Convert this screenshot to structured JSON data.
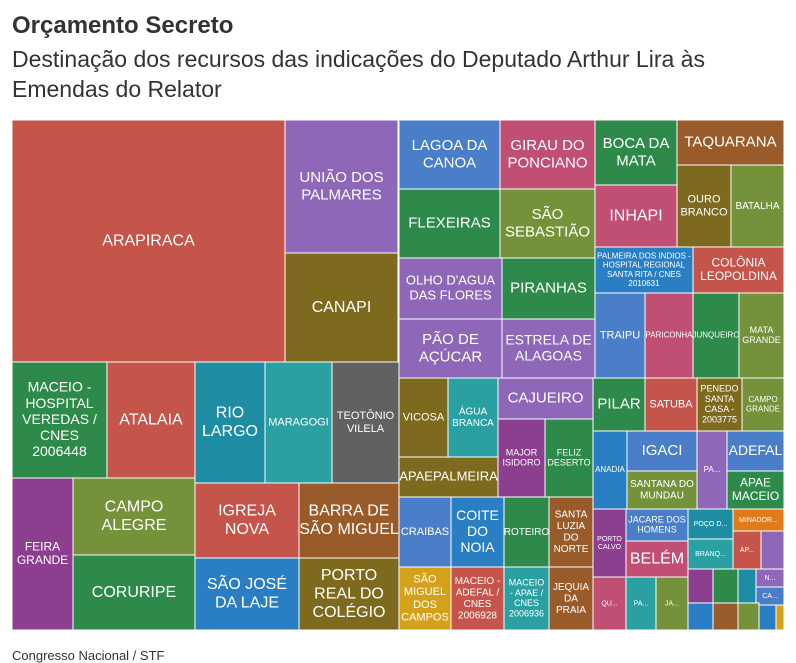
{
  "title": "Orçamento Secreto",
  "subtitle": "Destinação dos recursos das indicações do Deputado Arthur Lira às Emendas do Relator",
  "source": "Congresso Nacional / STF",
  "colors": [
    "#c5544a",
    "#8e67b8",
    "#7d6a1e",
    "#2d8a4a",
    "#1e8da3",
    "#4a7ec9",
    "#c14f73",
    "#616161",
    "#2a7fc4",
    "#9a5b2b",
    "#73923a",
    "#2aa0a3",
    "#8c3f8f",
    "#d4a21a",
    "#e07a1a"
  ],
  "chart_data": {
    "type": "treemap",
    "title": "Orçamento Secreto",
    "subtitle": "Destinação dos recursos das indicações do Deputado Arthur Lira às Emendas do Relator",
    "tiles": [
      {
        "label": "ARAPIRACA"
      },
      {
        "label": "UNIÃO DOS PALMARES"
      },
      {
        "label": "CANAPI"
      },
      {
        "label": "MACEIO - HOSPITAL VEREDAS / CNES 2006448"
      },
      {
        "label": "ATALAIA"
      },
      {
        "label": "RIO LARGO"
      },
      {
        "label": "MARAGOGI"
      },
      {
        "label": "TEOTÔNIO VILELA"
      },
      {
        "label": "FEIRA GRANDE"
      },
      {
        "label": "CAMPO ALEGRE"
      },
      {
        "label": "CORURIPE"
      },
      {
        "label": "IGREJA NOVA"
      },
      {
        "label": "BARRA DE SÃO MIGUEL"
      },
      {
        "label": "SÃO JOSÉ DA LAJE"
      },
      {
        "label": "PORTO REAL DO COLÉGIO"
      },
      {
        "label": "LAGOA DA CANOA"
      },
      {
        "label": "GIRAU DO PONCIANO"
      },
      {
        "label": "FLEXEIRAS"
      },
      {
        "label": "SÃO SEBASTIÃO"
      },
      {
        "label": "OLHO D'AGUA DAS FLORES"
      },
      {
        "label": "PIRANHAS"
      },
      {
        "label": "PÃO DE AÇÚCAR"
      },
      {
        "label": "ESTRELA DE ALAGOAS"
      },
      {
        "label": "VICOSA"
      },
      {
        "label": "ÁGUA BRANCA"
      },
      {
        "label": "CAJUEIRO"
      },
      {
        "label": "MAJOR ISIDORO"
      },
      {
        "label": "FELIZ DESERTO"
      },
      {
        "label": "APAEPALMEIRA"
      },
      {
        "label": "CRAIBAS"
      },
      {
        "label": "COITE DO NOIA"
      },
      {
        "label": "ROTEIRO"
      },
      {
        "label": "SANTA LUZIA DO NORTE"
      },
      {
        "label": "SÃO MIGUEL DOS CAMPOS"
      },
      {
        "label": "MACEIO - ADEFAL / CNES 2006928"
      },
      {
        "label": "MACEIO - APAE / CNES 2006936"
      },
      {
        "label": "JEQUIA DA PRAIA"
      },
      {
        "label": "BOCA DA MATA"
      },
      {
        "label": "TAQUARANA"
      },
      {
        "label": "INHAPI"
      },
      {
        "label": "OURO BRANCO"
      },
      {
        "label": "BATALHA"
      },
      {
        "label": "PALMEIRA DOS INDIOS - HOSPITAL REGIONAL SANTA RITA / CNES 2010631"
      },
      {
        "label": "COLÔNIA LEOPOLDINA"
      },
      {
        "label": "TRAIPU"
      },
      {
        "label": "PARICONHA"
      },
      {
        "label": "JUNQUEIRO"
      },
      {
        "label": "MATA GRANDE"
      },
      {
        "label": "PILAR"
      },
      {
        "label": "SATUBA"
      },
      {
        "label": "PENEDO SANTA CASA - 2003775"
      },
      {
        "label": "CAMPO GRANDE"
      },
      {
        "label": "ANADIA"
      },
      {
        "label": "IGACI"
      },
      {
        "label": "SANTANA DO MUNDAU"
      },
      {
        "label": "PA..."
      },
      {
        "label": "ADEFAL"
      },
      {
        "label": "APAE MACEIO"
      },
      {
        "label": "PORTO CALVO"
      },
      {
        "label": "JACARE DOS HOMENS"
      },
      {
        "label": "POÇO D..."
      },
      {
        "label": "MINADOR..."
      },
      {
        "label": "BELÉM"
      },
      {
        "label": "BRANQ..."
      },
      {
        "label": "AP..."
      },
      {
        "label": "N..."
      },
      {
        "label": "CA..."
      },
      {
        "label": "QU..."
      },
      {
        "label": "PA..."
      },
      {
        "label": "JA..."
      }
    ]
  }
}
